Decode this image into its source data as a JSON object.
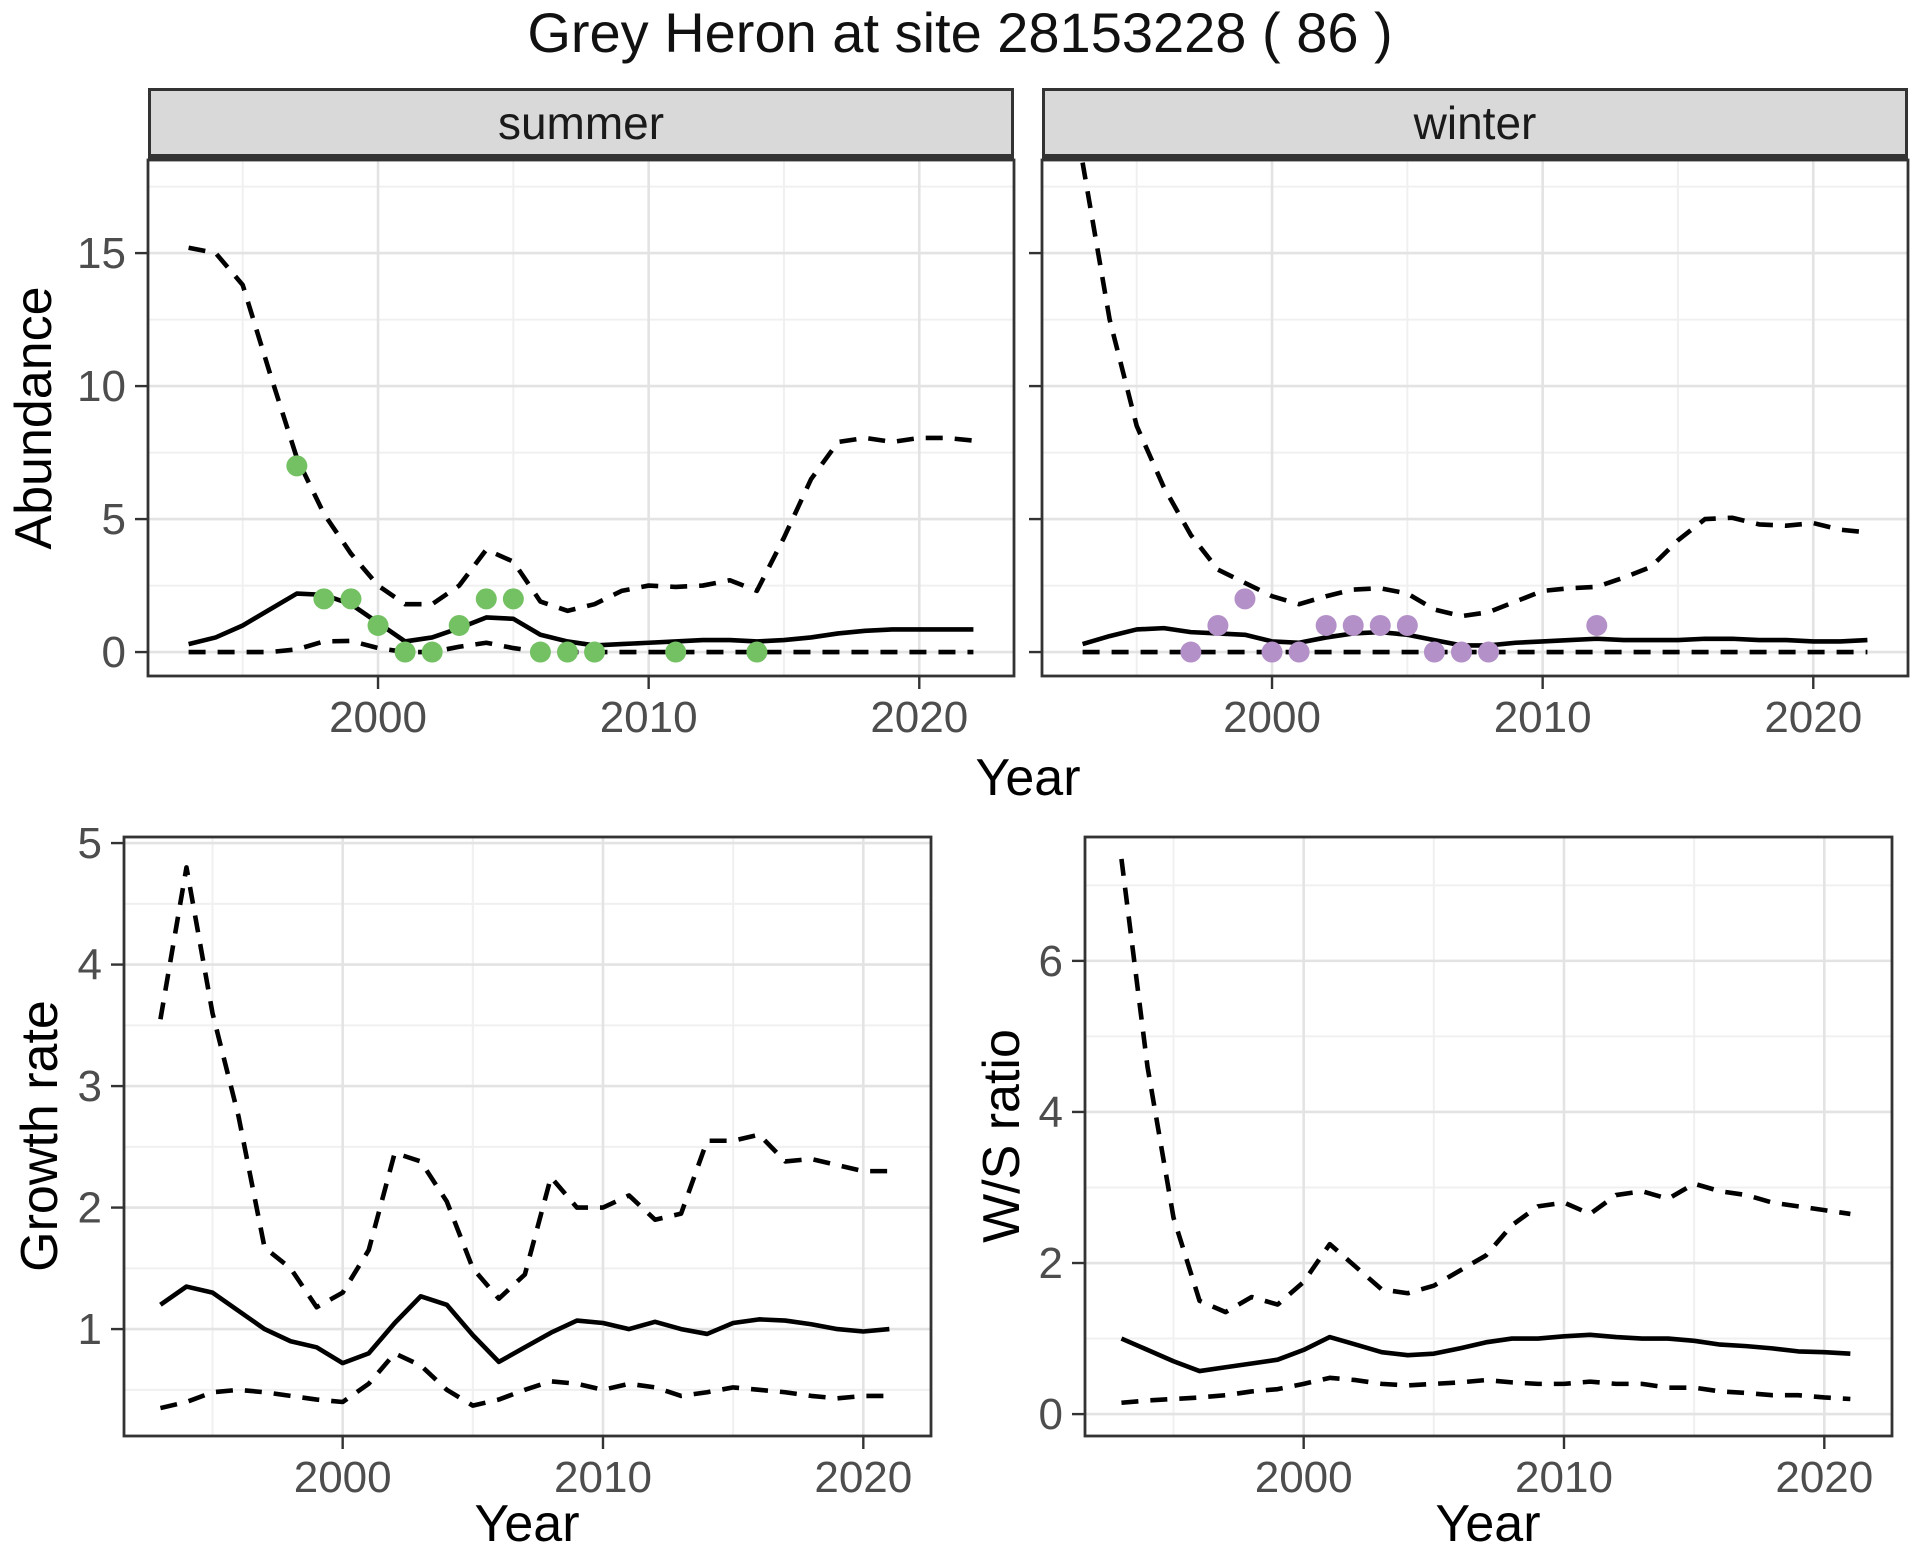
{
  "title": "Grey Heron at site 28153228 ( 86 )",
  "colors": {
    "summer_points": "#74c163",
    "winter_points": "#b490c8",
    "line": "#000000",
    "strip_background": "#d9d9d9",
    "panel_border": "#333333",
    "tick_label": "#4d4d4d"
  },
  "chart_data": [
    {
      "id": "abundance-summer",
      "type": "line",
      "facet_label": "summer",
      "xlabel": "Year",
      "ylabel": "Abundance",
      "x_ticks": [
        2000,
        2010,
        2020
      ],
      "x_minor": [
        1995,
        2005,
        2015
      ],
      "y_ticks": [
        0,
        5,
        10,
        15
      ],
      "y_minor": [
        2.5,
        7.5,
        12.5,
        17.5
      ],
      "xlim": [
        1991.5,
        2023.5
      ],
      "ylim": [
        -0.9,
        18.5
      ],
      "show_y_tick_labels": true,
      "x": [
        1993,
        1994,
        1995,
        1996,
        1997,
        1998,
        1999,
        2000,
        2001,
        2002,
        2003,
        2004,
        2005,
        2006,
        2007,
        2008,
        2009,
        2010,
        2011,
        2012,
        2013,
        2014,
        2015,
        2016,
        2017,
        2018,
        2019,
        2020,
        2021,
        2022
      ],
      "series": [
        {
          "name": "upper-ci",
          "style": "dashed",
          "values": [
            15.2,
            15.0,
            13.8,
            10.5,
            7.3,
            5.2,
            3.7,
            2.5,
            1.8,
            1.8,
            2.5,
            3.85,
            3.4,
            1.9,
            1.55,
            1.8,
            2.3,
            2.5,
            2.45,
            2.5,
            2.7,
            2.3,
            4.3,
            6.5,
            7.9,
            8.05,
            7.9,
            8.05,
            8.05,
            7.95
          ]
        },
        {
          "name": "median",
          "style": "solid",
          "values": [
            0.3,
            0.55,
            1.0,
            1.6,
            2.2,
            2.15,
            1.8,
            1.1,
            0.4,
            0.55,
            0.9,
            1.3,
            1.25,
            0.65,
            0.4,
            0.25,
            0.3,
            0.35,
            0.4,
            0.45,
            0.45,
            0.4,
            0.45,
            0.55,
            0.7,
            0.8,
            0.85,
            0.85,
            0.85,
            0.85
          ]
        },
        {
          "name": "lower-ci",
          "style": "dashed",
          "values": [
            0,
            0,
            0,
            0,
            0.1,
            0.4,
            0.42,
            0.15,
            0,
            0,
            0.2,
            0.35,
            0.15,
            0,
            0,
            0,
            0,
            0,
            0,
            0,
            0,
            0,
            0,
            0,
            0,
            0,
            0,
            0,
            0,
            0
          ]
        }
      ],
      "points": {
        "name": "observed-counts",
        "color": "#74c163",
        "x": [
          1997,
          1998,
          1999,
          2000,
          2001,
          2002,
          2003,
          2004,
          2005,
          2006,
          2007,
          2008,
          2011,
          2014
        ],
        "y": [
          7,
          2,
          2,
          1,
          0,
          0,
          1,
          2,
          2,
          0,
          0,
          0,
          0,
          0
        ]
      }
    },
    {
      "id": "abundance-winter",
      "type": "line",
      "facet_label": "winter",
      "xlabel": "Year",
      "ylabel": "Abundance",
      "x_ticks": [
        2000,
        2010,
        2020
      ],
      "x_minor": [
        1995,
        2005,
        2015
      ],
      "y_ticks": [
        0,
        5,
        10,
        15
      ],
      "y_minor": [
        2.5,
        7.5,
        12.5,
        17.5
      ],
      "xlim": [
        1991.5,
        2023.5
      ],
      "ylim": [
        -0.9,
        18.5
      ],
      "show_y_tick_labels": false,
      "x": [
        1993,
        1994,
        1995,
        1996,
        1997,
        1998,
        1999,
        2000,
        2001,
        2002,
        2003,
        2004,
        2005,
        2006,
        2007,
        2008,
        2009,
        2010,
        2011,
        2012,
        2013,
        2014,
        2015,
        2016,
        2017,
        2018,
        2019,
        2020,
        2021,
        2022
      ],
      "series": [
        {
          "name": "upper-ci",
          "style": "dashed",
          "values": [
            18.4,
            12.5,
            8.5,
            6.2,
            4.4,
            3.1,
            2.6,
            2.1,
            1.8,
            2.1,
            2.35,
            2.4,
            2.2,
            1.6,
            1.35,
            1.5,
            1.9,
            2.3,
            2.4,
            2.45,
            2.8,
            3.2,
            4.2,
            5.0,
            5.05,
            4.8,
            4.75,
            4.85,
            4.6,
            4.5
          ]
        },
        {
          "name": "median",
          "style": "solid",
          "values": [
            0.3,
            0.6,
            0.85,
            0.9,
            0.75,
            0.7,
            0.65,
            0.4,
            0.35,
            0.55,
            0.7,
            0.75,
            0.65,
            0.45,
            0.25,
            0.25,
            0.35,
            0.4,
            0.45,
            0.5,
            0.45,
            0.45,
            0.45,
            0.5,
            0.5,
            0.45,
            0.45,
            0.4,
            0.4,
            0.45
          ]
        },
        {
          "name": "lower-ci",
          "style": "dashed",
          "values": [
            0,
            0,
            0,
            0,
            0,
            0,
            0,
            0,
            0,
            0,
            0,
            0,
            0,
            0,
            0,
            0,
            0,
            0,
            0,
            0,
            0,
            0,
            0,
            0,
            0,
            0,
            0,
            0,
            0,
            0
          ]
        }
      ],
      "points": {
        "name": "observed-counts",
        "color": "#b490c8",
        "x": [
          1997,
          1998,
          1999,
          2000,
          2001,
          2002,
          2003,
          2004,
          2005,
          2006,
          2007,
          2008,
          2012
        ],
        "y": [
          0,
          1,
          2,
          0,
          0,
          1,
          1,
          1,
          1,
          0,
          0,
          0,
          1
        ]
      }
    },
    {
      "id": "growth-rate",
      "type": "line",
      "xlabel": "Year",
      "ylabel": "Growth rate",
      "x_ticks": [
        2000,
        2010,
        2020
      ],
      "x_minor": [
        1995,
        2005,
        2015
      ],
      "y_ticks": [
        1,
        2,
        3,
        4,
        5
      ],
      "y_minor": [
        0.5,
        1.5,
        2.5,
        3.5,
        4.5
      ],
      "xlim": [
        1991.6,
        2022.6
      ],
      "ylim": [
        0.12,
        5.05
      ],
      "show_y_tick_labels": true,
      "x": [
        1993,
        1994,
        1995,
        1996,
        1997,
        1998,
        1999,
        2000,
        2001,
        2002,
        2003,
        2004,
        2005,
        2006,
        2007,
        2008,
        2009,
        2010,
        2011,
        2012,
        2013,
        2014,
        2015,
        2016,
        2017,
        2018,
        2019,
        2020,
        2021
      ],
      "series": [
        {
          "name": "upper-ci",
          "style": "dashed",
          "values": [
            3.55,
            4.8,
            3.6,
            2.75,
            1.67,
            1.5,
            1.18,
            1.3,
            1.65,
            2.45,
            2.38,
            2.05,
            1.5,
            1.25,
            1.45,
            2.25,
            2.0,
            2.0,
            2.1,
            1.9,
            1.95,
            2.55,
            2.55,
            2.6,
            2.38,
            2.4,
            2.35,
            2.3,
            2.3
          ]
        },
        {
          "name": "median",
          "style": "solid",
          "values": [
            1.2,
            1.35,
            1.3,
            1.15,
            1.0,
            0.9,
            0.85,
            0.72,
            0.8,
            1.05,
            1.27,
            1.2,
            0.95,
            0.73,
            0.85,
            0.97,
            1.07,
            1.05,
            1.0,
            1.06,
            1.0,
            0.96,
            1.05,
            1.08,
            1.07,
            1.04,
            1.0,
            0.98,
            1.0
          ]
        },
        {
          "name": "lower-ci",
          "style": "dashed",
          "values": [
            0.35,
            0.4,
            0.48,
            0.5,
            0.48,
            0.45,
            0.42,
            0.4,
            0.55,
            0.8,
            0.7,
            0.5,
            0.37,
            0.42,
            0.5,
            0.57,
            0.55,
            0.5,
            0.55,
            0.52,
            0.45,
            0.48,
            0.52,
            0.5,
            0.48,
            0.45,
            0.43,
            0.45,
            0.45
          ]
        }
      ]
    },
    {
      "id": "ws-ratio",
      "type": "line",
      "xlabel": "Year",
      "ylabel": "W/S ratio",
      "x_ticks": [
        2000,
        2010,
        2020
      ],
      "x_minor": [
        1995,
        2005,
        2015
      ],
      "y_ticks": [
        0,
        2,
        4,
        6
      ],
      "y_minor": [
        1,
        3,
        5,
        7
      ],
      "xlim": [
        1991.6,
        2022.6
      ],
      "ylim": [
        -0.29,
        7.64
      ],
      "show_y_tick_labels": true,
      "x": [
        1993,
        1994,
        1995,
        1996,
        1997,
        1998,
        1999,
        2000,
        2001,
        2002,
        2003,
        2004,
        2005,
        2006,
        2007,
        2008,
        2009,
        2010,
        2011,
        2012,
        2013,
        2014,
        2015,
        2016,
        2017,
        2018,
        2019,
        2020,
        2021
      ],
      "series": [
        {
          "name": "upper-ci",
          "style": "dashed",
          "values": [
            7.35,
            4.6,
            2.6,
            1.5,
            1.35,
            1.55,
            1.45,
            1.75,
            2.25,
            1.95,
            1.65,
            1.6,
            1.7,
            1.9,
            2.1,
            2.5,
            2.75,
            2.8,
            2.65,
            2.9,
            2.95,
            2.85,
            3.05,
            2.95,
            2.9,
            2.8,
            2.75,
            2.7,
            2.65
          ]
        },
        {
          "name": "median",
          "style": "solid",
          "values": [
            1.0,
            0.85,
            0.7,
            0.57,
            0.62,
            0.67,
            0.72,
            0.85,
            1.02,
            0.92,
            0.82,
            0.78,
            0.8,
            0.87,
            0.95,
            1.0,
            1.0,
            1.03,
            1.05,
            1.02,
            1.0,
            1.0,
            0.97,
            0.92,
            0.9,
            0.87,
            0.83,
            0.82,
            0.8
          ]
        },
        {
          "name": "lower-ci",
          "style": "dashed",
          "values": [
            0.15,
            0.18,
            0.2,
            0.22,
            0.25,
            0.3,
            0.33,
            0.4,
            0.48,
            0.45,
            0.4,
            0.38,
            0.4,
            0.42,
            0.45,
            0.42,
            0.4,
            0.4,
            0.43,
            0.4,
            0.4,
            0.35,
            0.35,
            0.3,
            0.28,
            0.25,
            0.25,
            0.22,
            0.2
          ]
        }
      ]
    }
  ]
}
